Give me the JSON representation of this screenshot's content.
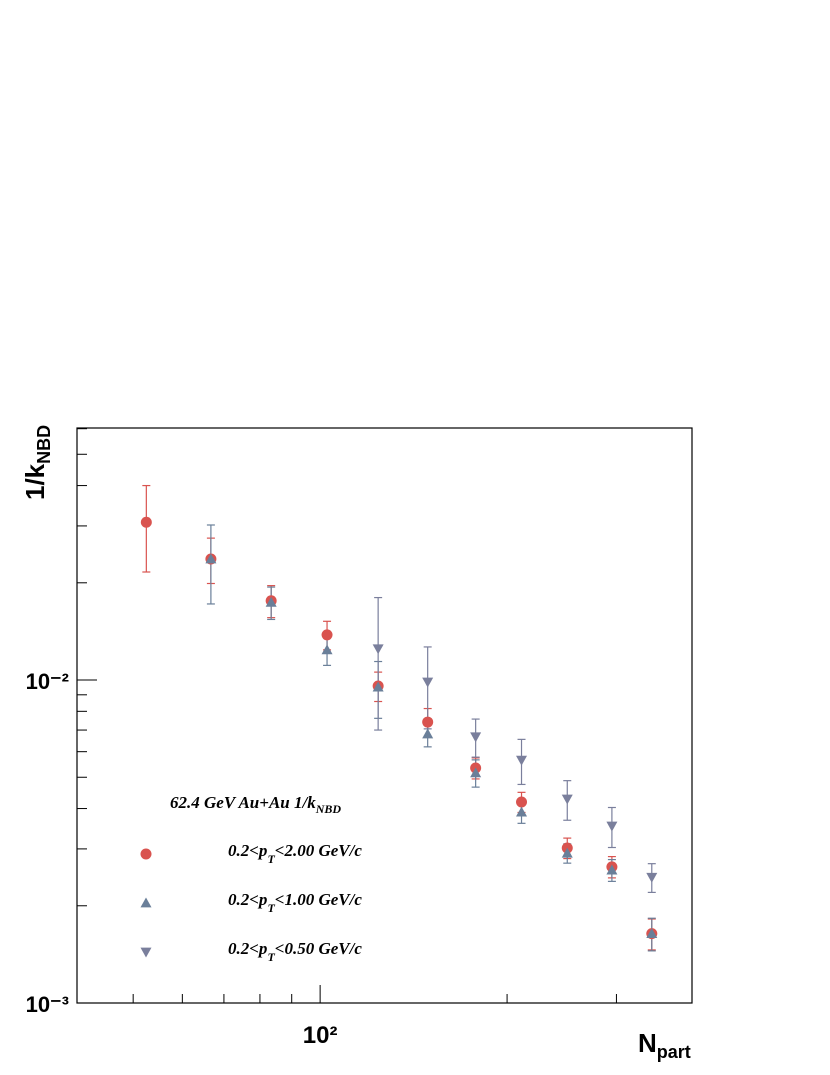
{
  "chart_data": {
    "type": "scatter",
    "xlabel": {
      "text": "N",
      "sub": "part"
    },
    "ylabel": {
      "text": "1/k",
      "sub": "NBD"
    },
    "log_x": true,
    "log_y": true,
    "xlim": [
      40.6,
      397
    ],
    "ylim": [
      0.001,
      0.0603
    ],
    "xticks": [
      {
        "value": 100,
        "label": "10²"
      }
    ],
    "yticks": [
      {
        "value": 0.001,
        "label": "10⁻³"
      },
      {
        "value": 0.01,
        "label": "10⁻²"
      }
    ],
    "xminorticks": [
      50,
      60,
      70,
      80,
      90,
      200,
      300
    ],
    "yminorticks": [
      0.002,
      0.003,
      0.004,
      0.005,
      0.006,
      0.007,
      0.008,
      0.009,
      0.02,
      0.03,
      0.04,
      0.05,
      0.06
    ],
    "legend_title": {
      "text": "62.4 GeV Au+Au 1/k",
      "sub": "NBD"
    },
    "series": [
      {
        "name": [
          "0.2<p",
          "T",
          "<2.00 GeV/c"
        ],
        "color": "#d9534f",
        "marker": "circle",
        "x": [
          52.5,
          66.7,
          83.4,
          102.6,
          124,
          149,
          178,
          211,
          250,
          295,
          342
        ],
        "values": [
          0.0308,
          0.0237,
          0.0176,
          0.0138,
          0.00958,
          0.00741,
          0.00534,
          0.00419,
          0.00302,
          0.00264,
          0.00164
        ],
        "errors": [
          0.0092,
          0.0038,
          0.002,
          0.0014,
          0.001,
          0.00075,
          0.0004,
          0.0003,
          0.00022,
          0.0002,
          0.00018
        ]
      },
      {
        "name": [
          "0.2<p",
          "T",
          "<1.00 GeV/c"
        ],
        "color": "#6a7f99",
        "marker": "triangle-up",
        "x": [
          66.7,
          83.4,
          102.6,
          124,
          149,
          178,
          211,
          250,
          295,
          342
        ],
        "values": [
          0.0237,
          0.0174,
          0.0124,
          0.00951,
          0.00681,
          0.00516,
          0.0039,
          0.00291,
          0.00258,
          0.00164
        ],
        "errors": [
          0.0065,
          0.002,
          0.0013,
          0.0019,
          0.0006,
          0.0005,
          0.0003,
          0.0002,
          0.0002,
          0.00019
        ]
      },
      {
        "name": [
          "0.2<p",
          "T",
          "<0.50 GeV/c"
        ],
        "color": "#7a7f9c",
        "marker": "triangle-down",
        "x": [
          124,
          149,
          178,
          211,
          250,
          295,
          342
        ],
        "values": [
          0.0125,
          0.00986,
          0.00667,
          0.00565,
          0.00428,
          0.00353,
          0.00245
        ],
        "errors": [
          0.0055,
          0.0028,
          0.0009,
          0.0009,
          0.0006,
          0.0005,
          0.00025
        ]
      }
    ]
  }
}
